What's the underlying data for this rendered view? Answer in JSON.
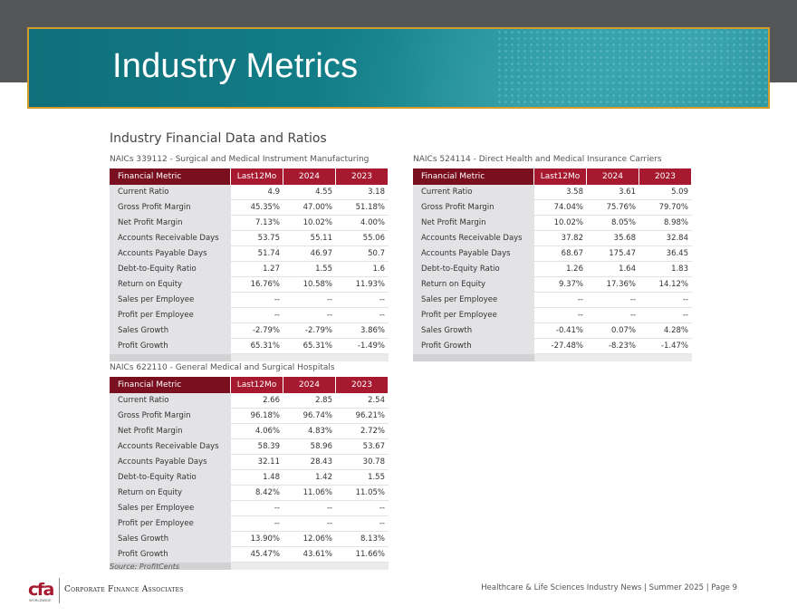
{
  "page_title": "Industry Metrics",
  "section_title": "Industry Financial Data and Ratios",
  "columns": {
    "metric": "Financial Metric",
    "c1": "Last12Mo",
    "c2": "2024",
    "c3": "2023"
  },
  "tables": [
    {
      "caption": "NAICs 339112 - Surgical and Medical Instrument Manufacturing",
      "rows": [
        {
          "metric": "Current Ratio",
          "v1": "4.9",
          "v2": "4.55",
          "v3": "3.18"
        },
        {
          "metric": "Gross Profit Margin",
          "v1": "45.35%",
          "v2": "47.00%",
          "v3": "51.18%"
        },
        {
          "metric": "Net Profit Margin",
          "v1": "7.13%",
          "v2": "10.02%",
          "v3": "4.00%"
        },
        {
          "metric": "Accounts Receivable Days",
          "v1": "53.75",
          "v2": "55.11",
          "v3": "55.06"
        },
        {
          "metric": "Accounts Payable Days",
          "v1": "51.74",
          "v2": "46.97",
          "v3": "50.7"
        },
        {
          "metric": "Debt-to-Equity Ratio",
          "v1": "1.27",
          "v2": "1.55",
          "v3": "1.6"
        },
        {
          "metric": "Return on Equity",
          "v1": "16.76%",
          "v2": "10.58%",
          "v3": "11.93%"
        },
        {
          "metric": "Sales per Employee",
          "v1": "--",
          "v2": "--",
          "v3": "--"
        },
        {
          "metric": "Profit per Employee",
          "v1": "--",
          "v2": "--",
          "v3": "--"
        },
        {
          "metric": "Sales Growth",
          "v1": "-2.79%",
          "v2": "-2.79%",
          "v3": "3.86%"
        },
        {
          "metric": "Profit Growth",
          "v1": "65.31%",
          "v2": "65.31%",
          "v3": "-1.49%"
        }
      ]
    },
    {
      "caption": "NAICs 524114 - Direct Health and Medical Insurance Carriers",
      "rows": [
        {
          "metric": "Current Ratio",
          "v1": "3.58",
          "v2": "3.61",
          "v3": "5.09"
        },
        {
          "metric": "Gross Profit Margin",
          "v1": "74.04%",
          "v2": "75.76%",
          "v3": "79.70%"
        },
        {
          "metric": "Net Profit Margin",
          "v1": "10.02%",
          "v2": "8.05%",
          "v3": "8.98%"
        },
        {
          "metric": "Accounts Receivable Days",
          "v1": "37.82",
          "v2": "35.68",
          "v3": "32.84"
        },
        {
          "metric": "Accounts Payable Days",
          "v1": "68.67",
          "v2": "175.47",
          "v3": "36.45"
        },
        {
          "metric": "Debt-to-Equity Ratio",
          "v1": "1.26",
          "v2": "1.64",
          "v3": "1.83"
        },
        {
          "metric": "Return on Equity",
          "v1": "9.37%",
          "v2": "17.36%",
          "v3": "14.12%"
        },
        {
          "metric": "Sales per Employee",
          "v1": "--",
          "v2": "--",
          "v3": "--"
        },
        {
          "metric": "Profit per Employee",
          "v1": "--",
          "v2": "--",
          "v3": "--"
        },
        {
          "metric": "Sales Growth",
          "v1": "-0.41%",
          "v2": "0.07%",
          "v3": "4.28%"
        },
        {
          "metric": "Profit Growth",
          "v1": "-27.48%",
          "v2": "-8.23%",
          "v3": "-1.47%"
        }
      ]
    },
    {
      "caption": "NAICs 622110 - General Medical and Surgical Hospitals",
      "rows": [
        {
          "metric": "Current Ratio",
          "v1": "2.66",
          "v2": "2.85",
          "v3": "2.54"
        },
        {
          "metric": "Gross Profit Margin",
          "v1": "96.18%",
          "v2": "96.74%",
          "v3": "96.21%"
        },
        {
          "metric": "Net Profit Margin",
          "v1": "4.06%",
          "v2": "4.83%",
          "v3": "2.72%"
        },
        {
          "metric": "Accounts Receivable Days",
          "v1": "58.39",
          "v2": "58.96",
          "v3": "53.67"
        },
        {
          "metric": "Accounts Payable Days",
          "v1": "32.11",
          "v2": "28.43",
          "v3": "30.78"
        },
        {
          "metric": "Debt-to-Equity Ratio",
          "v1": "1.48",
          "v2": "1.42",
          "v3": "1.55"
        },
        {
          "metric": "Return on Equity",
          "v1": "8.42%",
          "v2": "11.06%",
          "v3": "11.05%"
        },
        {
          "metric": "Sales per Employee",
          "v1": "--",
          "v2": "--",
          "v3": "--"
        },
        {
          "metric": "Profit per Employee",
          "v1": "--",
          "v2": "--",
          "v3": "--"
        },
        {
          "metric": "Sales Growth",
          "v1": "13.90%",
          "v2": "12.06%",
          "v3": "8.13%"
        },
        {
          "metric": "Profit Growth",
          "v1": "45.47%",
          "v2": "43.61%",
          "v3": "11.66%"
        }
      ]
    }
  ],
  "source": "Source: ProfitCents",
  "logo": {
    "letters": "cfa",
    "tagline": "WORLDWIDE"
  },
  "company_name": "Corporate Finance Associates",
  "footer": "Healthcare  & Life Sciences Industry News | Summer 2025 | Page 9",
  "colors": {
    "header_red": "#a6192e",
    "metric_head": "#7a0f1f",
    "banner_teal": "#137f89",
    "banner_border": "#d39b2a"
  }
}
